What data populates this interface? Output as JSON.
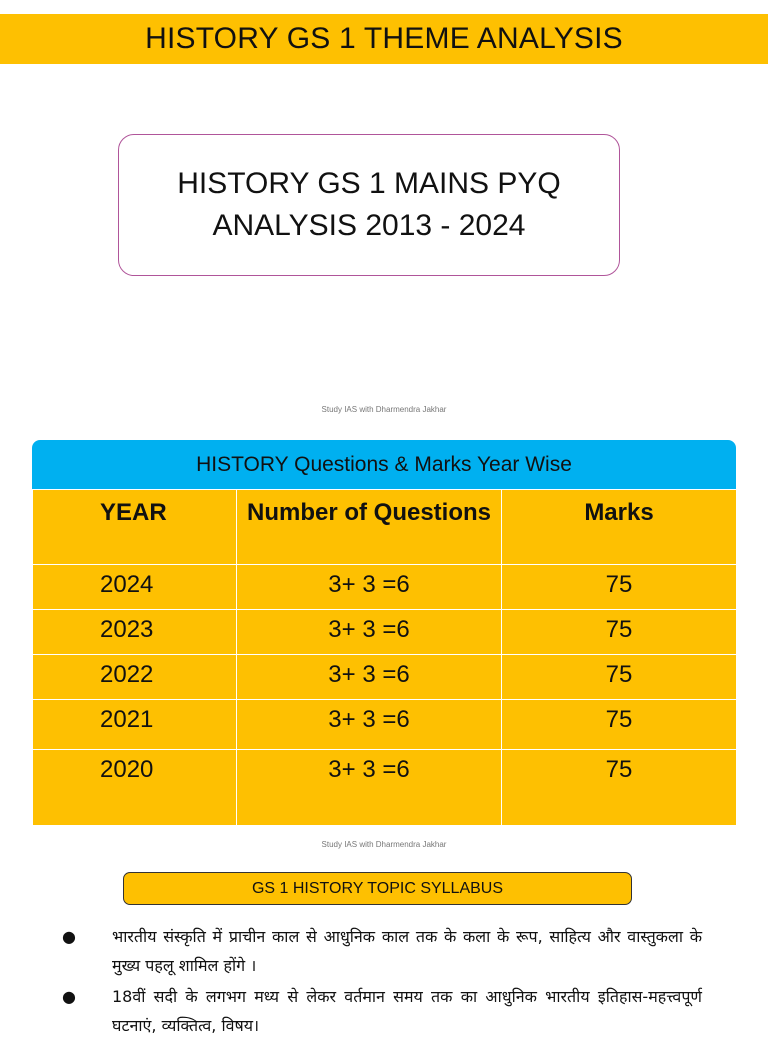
{
  "banner": {
    "title": "HISTORY GS 1 THEME ANALYSIS"
  },
  "title_box": {
    "line1": "HISTORY GS 1 MAINS PYQ",
    "line2": "ANALYSIS 2013 - 2024"
  },
  "watermark": {
    "text": "Study IAS with Dharmendra Jakhar"
  },
  "table": {
    "header_title": "HISTORY Questions & Marks Year Wise",
    "columns": [
      "YEAR",
      "Number of Questions",
      "Marks"
    ],
    "rows": [
      {
        "year": "2024",
        "questions": "3+ 3 =6",
        "marks": "75"
      },
      {
        "year": "2023",
        "questions": "3+ 3 =6",
        "marks": "75"
      },
      {
        "year": "2022",
        "questions": "3+ 3 =6",
        "marks": "75"
      },
      {
        "year": "2021",
        "questions": "3+ 3 =6",
        "marks": "75"
      },
      {
        "year": "2020",
        "questions": "3+ 3 =6",
        "marks": "75"
      }
    ],
    "colors": {
      "header_bg": "#00b0f0",
      "table_bg": "#fec001"
    }
  },
  "syllabus": {
    "title": "GS 1 HISTORY TOPIC SYLLABUS",
    "items": [
      "भारतीय संस्कृति में प्राचीन काल से आधुनिक काल तक के कला के रूप, साहित्य और वास्तुकला के मुख्य पहलू शामिल होंगे ।",
      "18वीं सदी के लगभग मध्य से लेकर वर्तमान समय तक का आधुनिक भारतीय इतिहास-महत्त्वपूर्ण घटनाएं, व्यक्तित्व, विषय।"
    ]
  },
  "colors": {
    "accent": "#fec001",
    "box_border": "#b0559a"
  }
}
